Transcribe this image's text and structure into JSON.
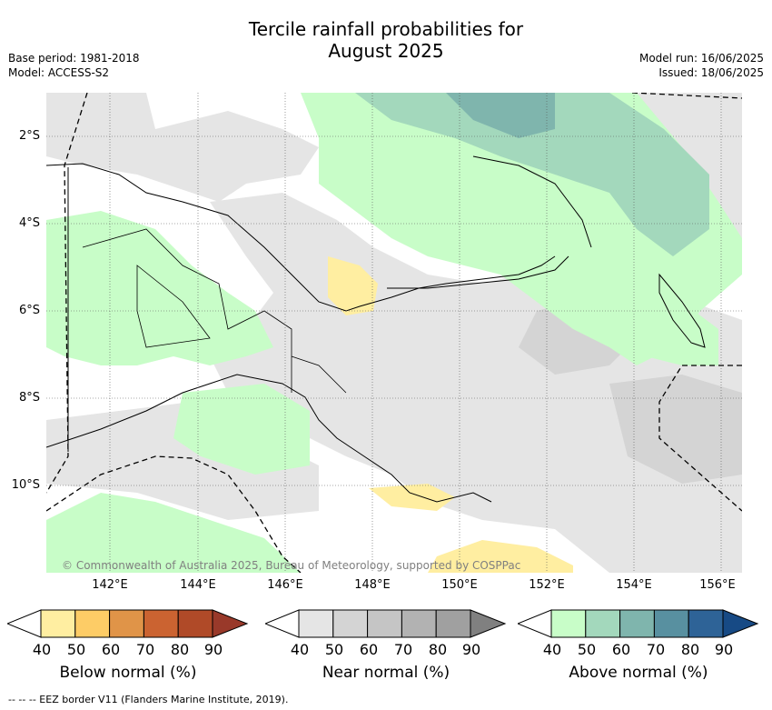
{
  "title_line1": "Tercile rainfall probabilities for",
  "title_line2": "August 2025",
  "base_period": "Base period: 1981-2018",
  "model": "Model: ACCESS-S2",
  "model_run": "Model run: 16/06/2025",
  "issued": "Issued: 18/06/2025",
  "lat_labels": [
    "2°S",
    "4°S",
    "6°S",
    "8°S",
    "10°S"
  ],
  "lon_labels": [
    "142°E",
    "144°E",
    "146°E",
    "148°E",
    "150°E",
    "152°E",
    "154°E",
    "156°E"
  ],
  "credit": "© Commonwealth of Australia 2025, Bureau of Meteorology, supported by COSPPac",
  "footer": "--  --  -- EEZ border V11 (Flanders Marine Institute, 2019).",
  "colorbars": [
    {
      "label": "Below normal (%)",
      "ticks": [
        "40",
        "50",
        "60",
        "70",
        "80",
        "90"
      ],
      "colors": [
        "#ffeea1",
        "#fdcc66",
        "#e09448",
        "#cb6331",
        "#b04a28",
        "#99392a"
      ]
    },
    {
      "label": "Near normal (%)",
      "ticks": [
        "40",
        "50",
        "60",
        "70",
        "80",
        "90"
      ],
      "colors": [
        "#e5e5e5",
        "#d4d4d4",
        "#c5c5c5",
        "#b2b2b2",
        "#a0a0a0",
        "#808080"
      ]
    },
    {
      "label": "Above normal (%)",
      "ticks": [
        "40",
        "50",
        "60",
        "70",
        "80",
        "90"
      ],
      "colors": [
        "#c8fdc8",
        "#a3d8bc",
        "#7fb5ad",
        "#5890a0",
        "#2e6397",
        "#174a85"
      ]
    }
  ]
}
